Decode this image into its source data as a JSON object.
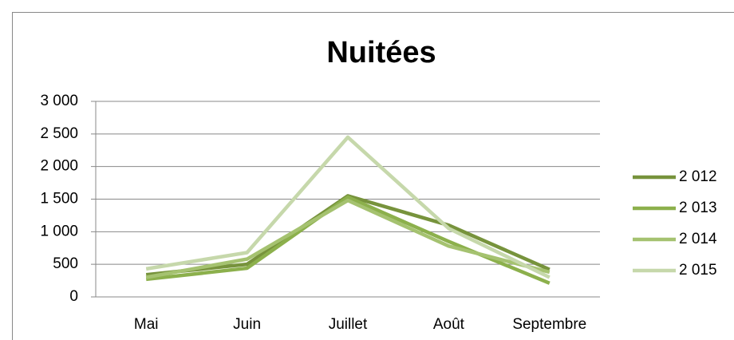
{
  "chart_data": {
    "type": "line",
    "title": "Nuitées",
    "categories": [
      "Mai",
      "Juin",
      "Juillet",
      "Août",
      "Septembre"
    ],
    "series": [
      {
        "name": "2 012",
        "color": "#77933c",
        "values": [
          340,
          500,
          1550,
          1100,
          420
        ]
      },
      {
        "name": "2 013",
        "color": "#8cb04c",
        "values": [
          270,
          440,
          1530,
          850,
          210
        ]
      },
      {
        "name": "2 014",
        "color": "#a5c270",
        "values": [
          300,
          580,
          1480,
          780,
          380
        ]
      },
      {
        "name": "2 015",
        "color": "#c6d8ab",
        "values": [
          430,
          680,
          2450,
          1050,
          300
        ]
      }
    ],
    "ylim": [
      0,
      3000
    ],
    "yticks": [
      0,
      500,
      {
        "value": 1000,
        "label": "1 000"
      },
      {
        "value": 1500,
        "label": "1 500"
      },
      {
        "value": 2000,
        "label": "2 000"
      },
      {
        "value": 2500,
        "label": "2 500"
      },
      {
        "value": 3000,
        "label": "3 000"
      }
    ],
    "grid": true,
    "legend": "right"
  }
}
